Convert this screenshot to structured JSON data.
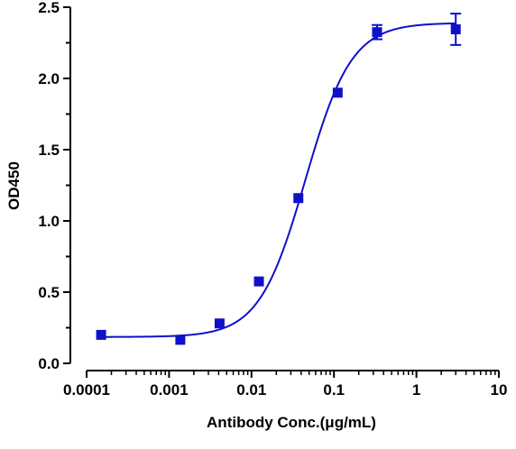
{
  "chart_data": {
    "type": "scatter",
    "title": "",
    "xlabel": "Antibody Conc.(μg/mL)",
    "ylabel": "OD450",
    "x_scale": "log",
    "xlim": [
      0.0001,
      10
    ],
    "ylim": [
      0,
      2.5
    ],
    "x_ticks": [
      0.0001,
      0.001,
      0.01,
      0.1,
      1,
      10
    ],
    "x_tick_labels": [
      "0.0001",
      "0.001",
      "0.01",
      "0.1",
      "1",
      "10"
    ],
    "y_ticks": [
      0,
      0.5,
      1,
      1.5,
      2,
      2.5
    ],
    "y_tick_labels": [
      "0.0",
      "0.5",
      "1.0",
      "1.5",
      "2.0",
      "2.5"
    ],
    "grid": false,
    "legend": "none",
    "color": "#1010c8",
    "series": [
      {
        "points": [
          {
            "x": 0.00015,
            "y": 0.2,
            "err": 0.01
          },
          {
            "x": 0.00137,
            "y": 0.165,
            "err": 0.01
          },
          {
            "x": 0.0041,
            "y": 0.28,
            "err": 0.01
          },
          {
            "x": 0.0123,
            "y": 0.575,
            "err": 0.015
          },
          {
            "x": 0.037,
            "y": 1.16,
            "err": 0.015
          },
          {
            "x": 0.111,
            "y": 1.9,
            "err": 0.015
          },
          {
            "x": 0.333,
            "y": 2.325,
            "err": 0.05
          },
          {
            "x": 3.0,
            "y": 2.345,
            "err": 0.11
          }
        ],
        "fit": {
          "model": "4PL",
          "bottom": 0.185,
          "top": 2.39,
          "ec50": 0.045,
          "hill": 1.55,
          "x_range": [
            0.00015,
            3.0
          ]
        }
      }
    ]
  }
}
